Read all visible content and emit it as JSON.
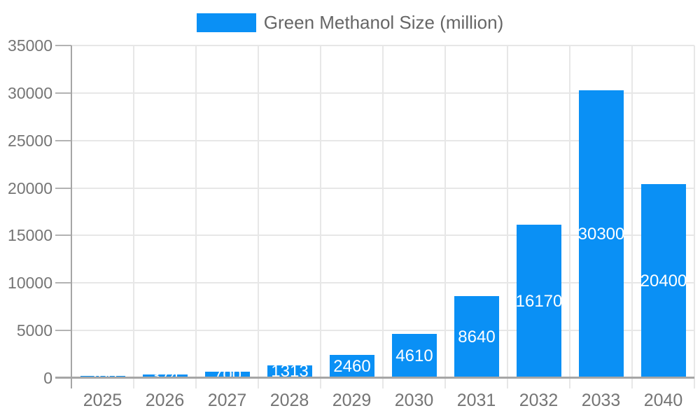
{
  "chart_data": {
    "type": "bar",
    "title": "",
    "legend": "Green Methanol Size (million)",
    "legend_position": "top-center",
    "categories": [
      "2025",
      "2026",
      "2027",
      "2028",
      "2029",
      "2030",
      "2031",
      "2032",
      "2033",
      "2040"
    ],
    "values": [
      200,
      374,
      700,
      1313,
      2460,
      4610,
      8640,
      16170,
      30300,
      20400
    ],
    "bar_labels": [
      "200",
      "374",
      "700",
      "1313",
      "2460",
      "4610",
      "8640",
      "16170",
      "30300",
      "20400"
    ],
    "xlabel": "",
    "ylabel": "",
    "ylim": [
      0,
      35000
    ],
    "ytick_step": 5000,
    "yticks": [
      "0",
      "5000",
      "10000",
      "15000",
      "20000",
      "25000",
      "30000",
      "35000"
    ],
    "grid": true,
    "colors": {
      "bar": "#0a90f5",
      "bar_label": "#ffffff",
      "axis": "#a6a6a6",
      "tick": "#b3b3b3",
      "gridline": "#e7e7e7",
      "tick_label": "#757575",
      "legend_text": "#666666",
      "background": "#ffffff"
    }
  }
}
